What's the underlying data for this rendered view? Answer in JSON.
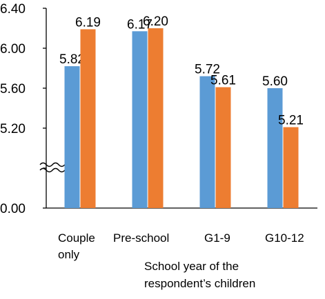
{
  "chart_data": {
    "type": "bar",
    "categories": [
      [
        "Couple",
        "only"
      ],
      [
        "Pre-school"
      ],
      [
        "G1-9"
      ],
      [
        "G10-12"
      ]
    ],
    "series": [
      {
        "values": [
          5.82,
          6.17,
          5.72,
          5.6
        ],
        "labels": [
          "5.82",
          "6.17",
          "5.72",
          "5.60"
        ],
        "color": "#5B9BD5"
      },
      {
        "values": [
          6.19,
          6.2,
          5.61,
          5.21
        ],
        "labels": [
          "6.19",
          "6.20",
          "5.61",
          "5.21"
        ],
        "color": "#ED7D31"
      }
    ],
    "y_ticks": [
      "6.40",
      "6.00",
      "5.60",
      "5.20",
      "0.00"
    ],
    "ylim_upper": [
      5.2,
      6.4
    ],
    "axis_break": true,
    "xlabel": [
      "School year of the",
      "respondent’s children"
    ],
    "ylabel": "",
    "title": "",
    "grid": false,
    "legend": "none"
  }
}
